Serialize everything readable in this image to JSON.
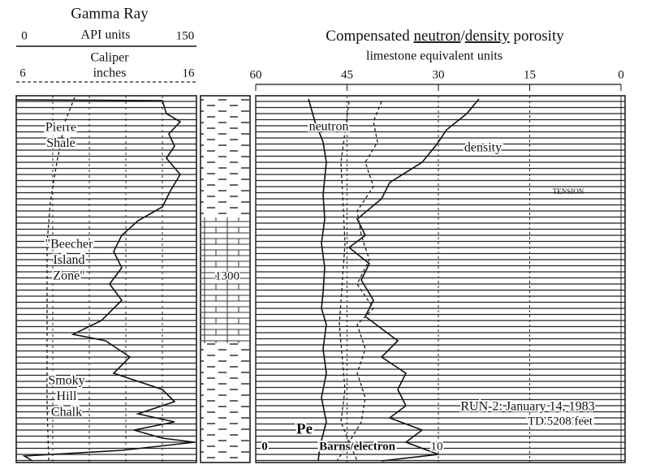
{
  "header": {
    "gamma": {
      "title": "Gamma Ray",
      "units": "API units",
      "min": 0,
      "max": 150
    },
    "caliper": {
      "title": "Caliper",
      "units": "inches",
      "min": 6,
      "max": 16
    },
    "porosity": {
      "title_pre": "Compensated ",
      "title_neutron": "neutron",
      "title_sep": "/",
      "title_density": "density",
      "title_post": " porosity",
      "subtitle": "limestone equivalent units",
      "ticks": [
        60,
        45,
        30,
        15,
        0
      ]
    }
  },
  "formations": [
    {
      "lines": [
        "Pierre",
        "Shale"
      ]
    },
    {
      "lines": [
        "\"Beecher",
        "Island",
        "Zone\""
      ]
    },
    {
      "lines": [
        "Smoky",
        "Hill",
        "Chalk"
      ]
    }
  ],
  "depth_label": "1300",
  "curve_labels": {
    "neutron": "neutron",
    "density": "density",
    "tension": "TENSION"
  },
  "run": {
    "line1": "RUN-2: January 14, 1983",
    "line2": "TD 5208 feet"
  },
  "pe": {
    "title": "Pe",
    "min": 0,
    "units": "Barns/electron",
    "max": 10
  }
}
